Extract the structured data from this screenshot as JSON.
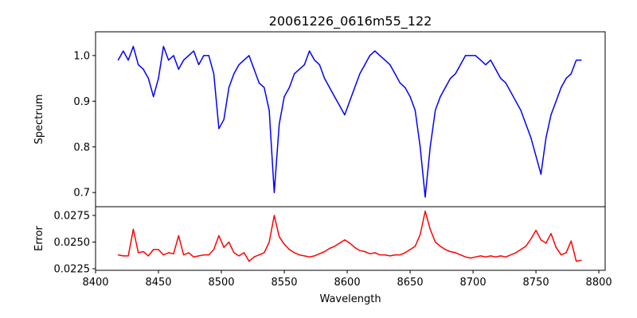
{
  "chart_data": [
    {
      "type": "line",
      "title": "20061226_0616m55_122",
      "xlabel": "",
      "ylabel": "Spectrum",
      "xlim": [
        8400,
        8805
      ],
      "ylim": [
        0.669,
        1.052
      ],
      "yticks": [
        0.7,
        0.8,
        0.9,
        1.0
      ],
      "ytick_labels": [
        "0.7",
        "0.8",
        "0.9",
        "1.0"
      ],
      "color": "#0000ff",
      "x": [
        8418,
        8422,
        8426,
        8430,
        8434,
        8438,
        8442,
        8446,
        8450,
        8454,
        8458,
        8462,
        8466,
        8470,
        8474,
        8478,
        8482,
        8486,
        8490,
        8494,
        8498,
        8502,
        8506,
        8510,
        8514,
        8518,
        8522,
        8526,
        8530,
        8534,
        8538,
        8542,
        8546,
        8550,
        8554,
        8558,
        8562,
        8566,
        8570,
        8574,
        8578,
        8582,
        8586,
        8590,
        8594,
        8598,
        8602,
        8606,
        8610,
        8614,
        8618,
        8622,
        8626,
        8630,
        8634,
        8638,
        8642,
        8646,
        8650,
        8654,
        8658,
        8662,
        8666,
        8670,
        8674,
        8678,
        8682,
        8686,
        8690,
        8694,
        8698,
        8702,
        8706,
        8710,
        8714,
        8718,
        8722,
        8726,
        8730,
        8734,
        8738,
        8742,
        8746,
        8750,
        8754,
        8758,
        8762,
        8766,
        8770,
        8774,
        8778,
        8782,
        8786
      ],
      "y": [
        0.99,
        1.01,
        0.99,
        1.02,
        0.98,
        0.97,
        0.95,
        0.91,
        0.95,
        1.02,
        0.99,
        1.0,
        0.97,
        0.99,
        1.0,
        1.01,
        0.98,
        1.0,
        1.0,
        0.96,
        0.84,
        0.86,
        0.93,
        0.96,
        0.98,
        0.99,
        1.0,
        0.97,
        0.94,
        0.93,
        0.88,
        0.7,
        0.85,
        0.91,
        0.93,
        0.96,
        0.97,
        0.98,
        1.01,
        0.99,
        0.98,
        0.95,
        0.93,
        0.91,
        0.89,
        0.87,
        0.9,
        0.93,
        0.96,
        0.98,
        1.0,
        1.01,
        1.0,
        0.99,
        0.98,
        0.96,
        0.94,
        0.93,
        0.91,
        0.88,
        0.8,
        0.69,
        0.8,
        0.88,
        0.91,
        0.93,
        0.95,
        0.96,
        0.98,
        1.0,
        1.0,
        1.0,
        0.99,
        0.98,
        0.99,
        0.97,
        0.95,
        0.94,
        0.92,
        0.9,
        0.88,
        0.85,
        0.82,
        0.78,
        0.74,
        0.82,
        0.87,
        0.9,
        0.93,
        0.95,
        0.96,
        0.99,
        0.99
      ]
    },
    {
      "type": "line",
      "title": "",
      "xlabel": "Wavelength",
      "ylabel": "Error",
      "xlim": [
        8400,
        8805
      ],
      "ylim": [
        0.02235,
        0.02832
      ],
      "yticks": [
        0.0225,
        0.025,
        0.0275
      ],
      "ytick_labels": [
        "0.0225",
        "0.0250",
        "0.0275"
      ],
      "xticks": [
        8400,
        8450,
        8500,
        8550,
        8600,
        8650,
        8700,
        8750,
        8800
      ],
      "xtick_labels": [
        "8400",
        "8450",
        "8500",
        "8550",
        "8600",
        "8650",
        "8700",
        "8750",
        "8800"
      ],
      "color": "#ff0000",
      "y": [
        0.0238,
        0.0237,
        0.0237,
        0.0262,
        0.024,
        0.0241,
        0.0237,
        0.0243,
        0.0243,
        0.0238,
        0.024,
        0.0239,
        0.0256,
        0.0238,
        0.024,
        0.0236,
        0.0237,
        0.0238,
        0.0238,
        0.0243,
        0.0256,
        0.0245,
        0.025,
        0.024,
        0.0237,
        0.024,
        0.0232,
        0.0236,
        0.0238,
        0.024,
        0.025,
        0.0275,
        0.0255,
        0.0248,
        0.0243,
        0.024,
        0.0238,
        0.0237,
        0.0236,
        0.0237,
        0.0239,
        0.0241,
        0.0244,
        0.0246,
        0.0249,
        0.0252,
        0.0249,
        0.0245,
        0.0242,
        0.0241,
        0.0239,
        0.024,
        0.0238,
        0.0238,
        0.0237,
        0.0238,
        0.0238,
        0.024,
        0.0243,
        0.0246,
        0.0257,
        0.0279,
        0.0262,
        0.025,
        0.0246,
        0.0243,
        0.0241,
        0.024,
        0.0238,
        0.0236,
        0.0235,
        0.0236,
        0.0237,
        0.0236,
        0.0237,
        0.0236,
        0.0237,
        0.0236,
        0.0238,
        0.024,
        0.0243,
        0.0246,
        0.0253,
        0.0261,
        0.0252,
        0.0249,
        0.0258,
        0.0245,
        0.0238,
        0.024,
        0.0251,
        0.0232,
        0.0233
      ]
    }
  ]
}
